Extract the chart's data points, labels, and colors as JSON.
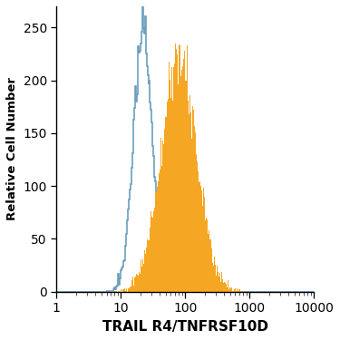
{
  "ylabel": "Relative Cell Number",
  "xlabel": "TRAIL R4/TNFRSF10D",
  "ylim": [
    0,
    270
  ],
  "yticks": [
    0,
    50,
    100,
    150,
    200,
    250
  ],
  "isotype_color": "#6a9fbe",
  "filled_color": "#f5a623",
  "filled_edge_color": "#1a1a2e",
  "background_color": "#ffffff",
  "isotype_peak_log": 1.35,
  "isotype_peak_val": 270,
  "isotype_std_log": 0.15,
  "filled_peak_log": 1.9,
  "filled_peak_val": 235,
  "filled_std_log": 0.28,
  "n_samples": 12000,
  "n_bins": 300,
  "xmin": 1,
  "xmax": 10000
}
